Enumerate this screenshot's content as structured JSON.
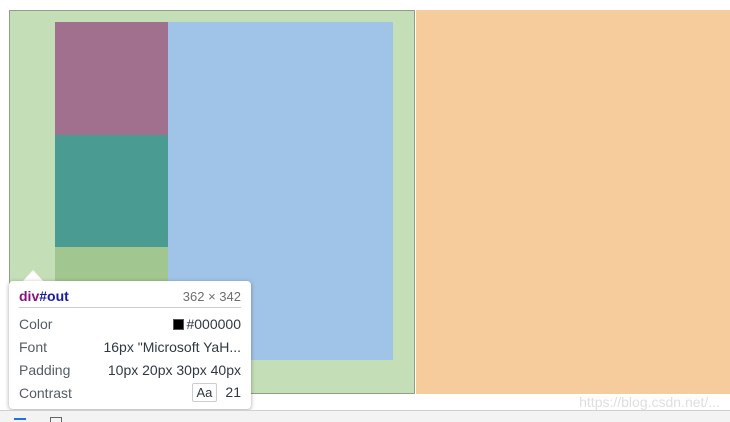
{
  "inspector_tooltip": {
    "tag": "div",
    "id": "#out",
    "dimensions": "362 × 342",
    "rows": [
      {
        "label": "Color",
        "value": "#000000"
      },
      {
        "label": "Font",
        "value": "16px \"Microsoft YaH..."
      },
      {
        "label": "Padding",
        "value": "10px 20px 30px 40px"
      },
      {
        "label": "Contrast",
        "badge": "Aa",
        "value": "21"
      }
    ]
  },
  "watermark": "https://blog.csdn.net/...",
  "colors": {
    "padding_overlay": "#c4dfb7",
    "content_overlay": "#a0c4e7",
    "margin_overlay": "#f7cc9d",
    "child_1": "#a0708e",
    "child_2": "#4a9b91",
    "child_3": "#a2c68f",
    "color_swatch": "#000000"
  },
  "icons": {
    "color_swatch": "color-swatch-icon",
    "devtools_toggle": "device-toggle-icon",
    "devtools_panel": "panel-icon"
  }
}
